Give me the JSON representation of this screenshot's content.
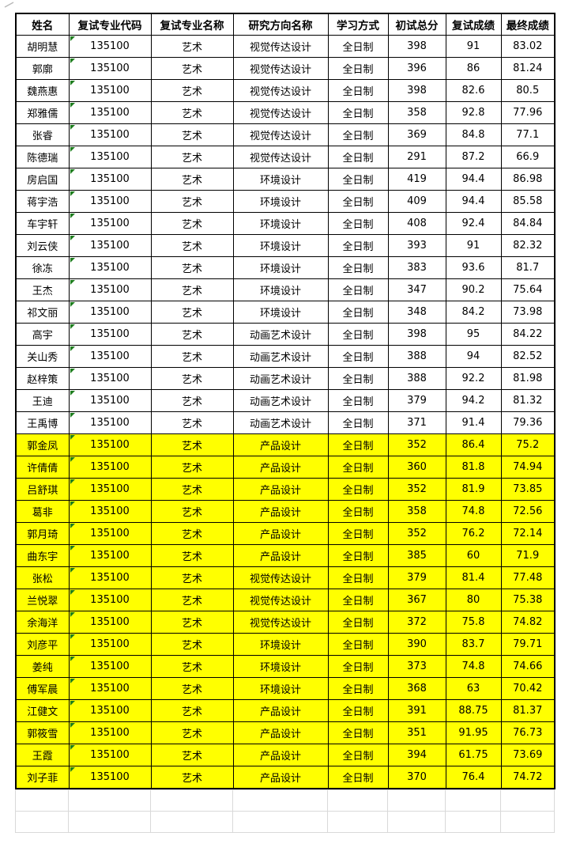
{
  "table": {
    "headers": [
      "姓名",
      "复试专业代码",
      "复试专业名称",
      "研究方向名称",
      "学习方式",
      "初试总分",
      "复试成绩",
      "最终成绩"
    ],
    "rows": [
      {
        "name": "胡明慧",
        "code": "135100",
        "major": "艺术",
        "direction": "视觉传达设计",
        "mode": "全日制",
        "initial": "398",
        "retest": "91",
        "final": "83.02",
        "highlighted": false
      },
      {
        "name": "郭廓",
        "code": "135100",
        "major": "艺术",
        "direction": "视觉传达设计",
        "mode": "全日制",
        "initial": "396",
        "retest": "86",
        "final": "81.24",
        "highlighted": false
      },
      {
        "name": "魏燕惠",
        "code": "135100",
        "major": "艺术",
        "direction": "视觉传达设计",
        "mode": "全日制",
        "initial": "398",
        "retest": "82.6",
        "final": "80.5",
        "highlighted": false
      },
      {
        "name": "郑雅儒",
        "code": "135100",
        "major": "艺术",
        "direction": "视觉传达设计",
        "mode": "全日制",
        "initial": "358",
        "retest": "92.8",
        "final": "77.96",
        "highlighted": false
      },
      {
        "name": "张睿",
        "code": "135100",
        "major": "艺术",
        "direction": "视觉传达设计",
        "mode": "全日制",
        "initial": "369",
        "retest": "84.8",
        "final": "77.1",
        "highlighted": false
      },
      {
        "name": "陈德瑞",
        "code": "135100",
        "major": "艺术",
        "direction": "视觉传达设计",
        "mode": "全日制",
        "initial": "291",
        "retest": "87.2",
        "final": "66.9",
        "highlighted": false
      },
      {
        "name": "房启国",
        "code": "135100",
        "major": "艺术",
        "direction": "环境设计",
        "mode": "全日制",
        "initial": "419",
        "retest": "94.4",
        "final": "86.98",
        "highlighted": false
      },
      {
        "name": "蒋宇浩",
        "code": "135100",
        "major": "艺术",
        "direction": "环境设计",
        "mode": "全日制",
        "initial": "409",
        "retest": "94.4",
        "final": "85.58",
        "highlighted": false
      },
      {
        "name": "车宇轩",
        "code": "135100",
        "major": "艺术",
        "direction": "环境设计",
        "mode": "全日制",
        "initial": "408",
        "retest": "92.4",
        "final": "84.84",
        "highlighted": false
      },
      {
        "name": "刘云侠",
        "code": "135100",
        "major": "艺术",
        "direction": "环境设计",
        "mode": "全日制",
        "initial": "393",
        "retest": "91",
        "final": "82.32",
        "highlighted": false
      },
      {
        "name": "徐冻",
        "code": "135100",
        "major": "艺术",
        "direction": "环境设计",
        "mode": "全日制",
        "initial": "383",
        "retest": "93.6",
        "final": "81.7",
        "highlighted": false
      },
      {
        "name": "王杰",
        "code": "135100",
        "major": "艺术",
        "direction": "环境设计",
        "mode": "全日制",
        "initial": "347",
        "retest": "90.2",
        "final": "75.64",
        "highlighted": false
      },
      {
        "name": "祁文丽",
        "code": "135100",
        "major": "艺术",
        "direction": "环境设计",
        "mode": "全日制",
        "initial": "348",
        "retest": "84.2",
        "final": "73.98",
        "highlighted": false
      },
      {
        "name": "高宇",
        "code": "135100",
        "major": "艺术",
        "direction": "动画艺术设计",
        "mode": "全日制",
        "initial": "398",
        "retest": "95",
        "final": "84.22",
        "highlighted": false
      },
      {
        "name": "关山秀",
        "code": "135100",
        "major": "艺术",
        "direction": "动画艺术设计",
        "mode": "全日制",
        "initial": "388",
        "retest": "94",
        "final": "82.52",
        "highlighted": false
      },
      {
        "name": "赵梓策",
        "code": "135100",
        "major": "艺术",
        "direction": "动画艺术设计",
        "mode": "全日制",
        "initial": "388",
        "retest": "92.2",
        "final": "81.98",
        "highlighted": false
      },
      {
        "name": "王迪",
        "code": "135100",
        "major": "艺术",
        "direction": "动画艺术设计",
        "mode": "全日制",
        "initial": "379",
        "retest": "94.2",
        "final": "81.32",
        "highlighted": false
      },
      {
        "name": "王禹博",
        "code": "135100",
        "major": "艺术",
        "direction": "动画艺术设计",
        "mode": "全日制",
        "initial": "371",
        "retest": "91.4",
        "final": "79.36",
        "highlighted": false
      },
      {
        "name": "郭金凤",
        "code": "135100",
        "major": "艺术",
        "direction": "产品设计",
        "mode": "全日制",
        "initial": "352",
        "retest": "86.4",
        "final": "75.2",
        "highlighted": true
      },
      {
        "name": "许倩倩",
        "code": "135100",
        "major": "艺术",
        "direction": "产品设计",
        "mode": "全日制",
        "initial": "360",
        "retest": "81.8",
        "final": "74.94",
        "highlighted": true
      },
      {
        "name": "吕舒琪",
        "code": "135100",
        "major": "艺术",
        "direction": "产品设计",
        "mode": "全日制",
        "initial": "352",
        "retest": "81.9",
        "final": "73.85",
        "highlighted": true
      },
      {
        "name": "葛非",
        "code": "135100",
        "major": "艺术",
        "direction": "产品设计",
        "mode": "全日制",
        "initial": "358",
        "retest": "74.8",
        "final": "72.56",
        "highlighted": true
      },
      {
        "name": "郭月琦",
        "code": "135100",
        "major": "艺术",
        "direction": "产品设计",
        "mode": "全日制",
        "initial": "352",
        "retest": "76.2",
        "final": "72.14",
        "highlighted": true
      },
      {
        "name": "曲东宇",
        "code": "135100",
        "major": "艺术",
        "direction": "产品设计",
        "mode": "全日制",
        "initial": "385",
        "retest": "60",
        "final": "71.9",
        "highlighted": true
      },
      {
        "name": "张松",
        "code": "135100",
        "major": "艺术",
        "direction": "视觉传达设计",
        "mode": "全日制",
        "initial": "379",
        "retest": "81.4",
        "final": "77.48",
        "highlighted": true
      },
      {
        "name": "兰悦翠",
        "code": "135100",
        "major": "艺术",
        "direction": "视觉传达设计",
        "mode": "全日制",
        "initial": "367",
        "retest": "80",
        "final": "75.38",
        "highlighted": true
      },
      {
        "name": "余海洋",
        "code": "135100",
        "major": "艺术",
        "direction": "视觉传达设计",
        "mode": "全日制",
        "initial": "372",
        "retest": "75.8",
        "final": "74.82",
        "highlighted": true
      },
      {
        "name": "刘彦平",
        "code": "135100",
        "major": "艺术",
        "direction": "环境设计",
        "mode": "全日制",
        "initial": "390",
        "retest": "83.7",
        "final": "79.71",
        "highlighted": true
      },
      {
        "name": "姜纯",
        "code": "135100",
        "major": "艺术",
        "direction": "环境设计",
        "mode": "全日制",
        "initial": "373",
        "retest": "74.8",
        "final": "74.66",
        "highlighted": true
      },
      {
        "name": "傅军晨",
        "code": "135100",
        "major": "艺术",
        "direction": "环境设计",
        "mode": "全日制",
        "initial": "368",
        "retest": "63",
        "final": "70.42",
        "highlighted": true
      },
      {
        "name": "江健文",
        "code": "135100",
        "major": "艺术",
        "direction": "产品设计",
        "mode": "全日制",
        "initial": "391",
        "retest": "88.75",
        "final": "81.37",
        "highlighted": true
      },
      {
        "name": "郭筱雪",
        "code": "135100",
        "major": "艺术",
        "direction": "产品设计",
        "mode": "全日制",
        "initial": "351",
        "retest": "91.95",
        "final": "76.73",
        "highlighted": true
      },
      {
        "name": "王霞",
        "code": "135100",
        "major": "艺术",
        "direction": "产品设计",
        "mode": "全日制",
        "initial": "394",
        "retest": "61.75",
        "final": "73.69",
        "highlighted": true
      },
      {
        "name": "刘子菲",
        "code": "135100",
        "major": "艺术",
        "direction": "产品设计",
        "mode": "全日制",
        "initial": "370",
        "retest": "76.4",
        "final": "74.72",
        "highlighted": true
      }
    ],
    "empty_row_count": 2
  },
  "icons": {
    "error_triangle": "excel-number-stored-as-text-marker"
  },
  "colors": {
    "highlight_yellow": "#FFFF00",
    "grid_black": "#000000",
    "grid_gray": "#D9D9D9",
    "triangle_green": "#1E7D1E",
    "text": "#000000"
  }
}
